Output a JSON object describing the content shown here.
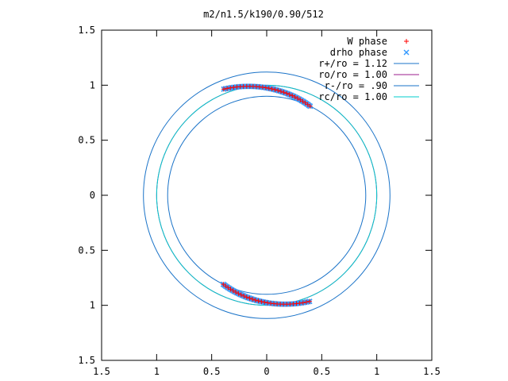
{
  "chart_data": {
    "type": "scatter",
    "title": "m2/n1.5/k190/0.90/512",
    "xlabel": "",
    "ylabel": "",
    "xlim": [
      -1.5,
      1.5
    ],
    "ylim": [
      -1.5,
      1.5
    ],
    "x_ticks": [
      -1.5,
      -1,
      -0.5,
      0,
      0.5,
      1,
      1.5
    ],
    "x_tick_labels": [
      "1.5",
      "1",
      "0.5",
      "0",
      "0.5",
      "1",
      "1.5"
    ],
    "y_ticks": [
      1.5,
      1,
      0.5,
      0,
      -0.5,
      -1,
      -1.5
    ],
    "y_tick_labels": [
      "1.5",
      "1",
      "0.5",
      "0",
      "0.5",
      "1",
      "1.5"
    ],
    "grid": false,
    "legend_position": "top-right",
    "colors": {
      "w_phase": "#ff0000",
      "drho_phase": "#3399ff",
      "r_plus": "#1a73c8",
      "r_o": "#9b1c8c",
      "r_minus": "#1a73c8",
      "r_c": "#00cccc",
      "axes": "#000000"
    },
    "series": [
      {
        "name": "W phase",
        "kind": "points",
        "marker": "+",
        "arcs": [
          {
            "radius_start": 1.04,
            "radius_end": 0.9,
            "angle_start_deg": 112,
            "angle_end_deg": 64,
            "count": 30
          },
          {
            "radius_start": 0.9,
            "radius_end": 1.04,
            "angle_start_deg": 244,
            "angle_end_deg": 292,
            "count": 30
          }
        ]
      },
      {
        "name": "drho phase",
        "kind": "points",
        "marker": "x",
        "arcs": [
          {
            "radius_start": 1.04,
            "radius_end": 0.9,
            "angle_start_deg": 112,
            "angle_end_deg": 64,
            "count": 60
          },
          {
            "radius_start": 0.9,
            "radius_end": 1.04,
            "angle_start_deg": 244,
            "angle_end_deg": 292,
            "count": 60
          }
        ]
      },
      {
        "name": "r+/ro = 1.12",
        "kind": "circle",
        "radius": 1.12
      },
      {
        "name": "ro/ro = 1.00",
        "kind": "circle",
        "radius": 1.0
      },
      {
        "name": "r-/ro = .90",
        "kind": "circle",
        "radius": 0.9
      },
      {
        "name": "rc/ro = 1.00",
        "kind": "circle",
        "radius": 1.0
      }
    ]
  }
}
